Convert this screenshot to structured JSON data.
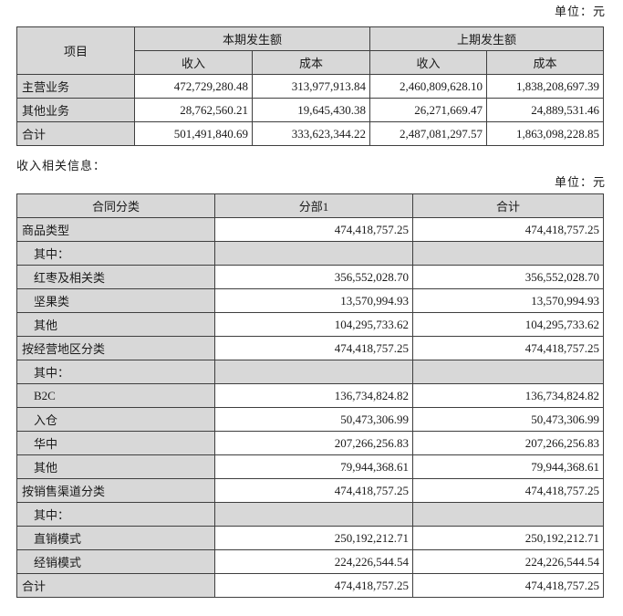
{
  "unit_label": "单位：元",
  "section_note": "收入相关信息：",
  "colors": {
    "cell_gray": "#d8d8d8",
    "border": "#3f3f3f",
    "background": "#ffffff",
    "text": "#1a1a1a"
  },
  "table1": {
    "header": {
      "item": "项目",
      "current_period": "本期发生额",
      "prior_period": "上期发生额",
      "revenue": "收入",
      "cost": "成本"
    },
    "rows": [
      {
        "label": "主营业务",
        "indent": false,
        "gray": false,
        "values": [
          "472,729,280.48",
          "313,977,913.84",
          "2,460,809,628.10",
          "1,838,208,697.39"
        ]
      },
      {
        "label": "其他业务",
        "indent": false,
        "gray": false,
        "values": [
          "28,762,560.21",
          "19,645,430.38",
          "26,271,669.47",
          "24,889,531.46"
        ]
      },
      {
        "label": "合计",
        "indent": false,
        "gray": false,
        "values": [
          "501,491,840.69",
          "333,623,344.22",
          "2,487,081,297.57",
          "1,863,098,228.85"
        ]
      }
    ]
  },
  "table2": {
    "header": [
      "合同分类",
      "分部1",
      "合计"
    ],
    "rows": [
      {
        "label": "商品类型",
        "indent": false,
        "gray": false,
        "values": [
          "474,418,757.25",
          "474,418,757.25"
        ]
      },
      {
        "label": "其中：",
        "indent": true,
        "gray": true,
        "values": [
          "",
          ""
        ]
      },
      {
        "label": "红枣及相关类",
        "indent": true,
        "gray": false,
        "values": [
          "356,552,028.70",
          "356,552,028.70"
        ]
      },
      {
        "label": "坚果类",
        "indent": true,
        "gray": false,
        "values": [
          "13,570,994.93",
          "13,570,994.93"
        ]
      },
      {
        "label": "其他",
        "indent": true,
        "gray": false,
        "values": [
          "104,295,733.62",
          "104,295,733.62"
        ]
      },
      {
        "label": "按经营地区分类",
        "indent": false,
        "gray": false,
        "values": [
          "474,418,757.25",
          "474,418,757.25"
        ]
      },
      {
        "label": "其中：",
        "indent": true,
        "gray": true,
        "values": [
          "",
          ""
        ]
      },
      {
        "label": "B2C",
        "indent": true,
        "gray": false,
        "values": [
          "136,734,824.82",
          "136,734,824.82"
        ]
      },
      {
        "label": "入仓",
        "indent": true,
        "gray": false,
        "values": [
          "50,473,306.99",
          "50,473,306.99"
        ]
      },
      {
        "label": "华中",
        "indent": true,
        "gray": false,
        "values": [
          "207,266,256.83",
          "207,266,256.83"
        ]
      },
      {
        "label": "其他",
        "indent": true,
        "gray": false,
        "values": [
          "79,944,368.61",
          "79,944,368.61"
        ]
      },
      {
        "label": "按销售渠道分类",
        "indent": false,
        "gray": false,
        "values": [
          "474,418,757.25",
          "474,418,757.25"
        ]
      },
      {
        "label": "其中：",
        "indent": true,
        "gray": true,
        "values": [
          "",
          ""
        ]
      },
      {
        "label": "直销模式",
        "indent": true,
        "gray": false,
        "values": [
          "250,192,212.71",
          "250,192,212.71"
        ]
      },
      {
        "label": "经销模式",
        "indent": true,
        "gray": false,
        "values": [
          "224,226,544.54",
          "224,226,544.54"
        ]
      },
      {
        "label": "合计",
        "indent": false,
        "gray": false,
        "values": [
          "474,418,757.25",
          "474,418,757.25"
        ]
      }
    ]
  }
}
